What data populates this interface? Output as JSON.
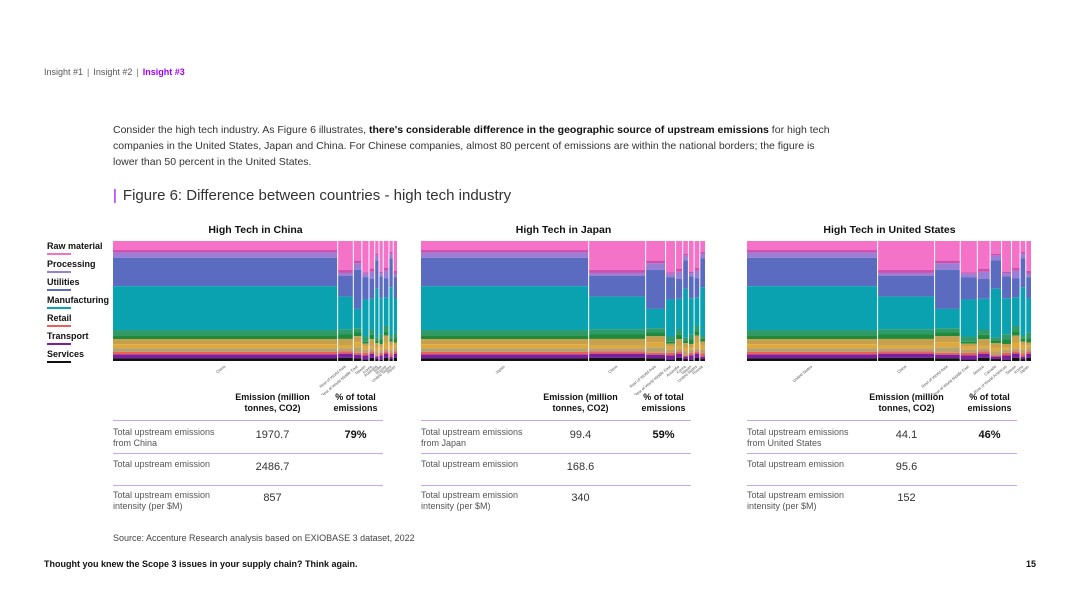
{
  "nav": {
    "items": [
      "Insight #1",
      "Insight #2",
      "Insight #3"
    ],
    "separator": "|",
    "active_index": 2
  },
  "intro": {
    "before": "Consider the high tech industry. As Figure 6 illustrates, ",
    "bold": "there's considerable difference in the geographic source of upstream emissions",
    "after": " for high tech companies in the United States, Japan and China. For Chinese companies, almost 80 percent of emissions are within the national borders; the figure is lower than 50 percent in the United States."
  },
  "figure_title": "Figure 6: Difference between countries - high tech industry",
  "legend": [
    {
      "label": "Raw material",
      "color": "#f472c8"
    },
    {
      "label": "Processing",
      "color": "#9b7fd6"
    },
    {
      "label": "Utilities",
      "color": "#5b6cc0"
    },
    {
      "label": "Manufacturing",
      "color": "#0aa2b0"
    },
    {
      "label": "Retail",
      "color": "#e8605a"
    },
    {
      "label": "Transport",
      "color": "#7b1fa2"
    },
    {
      "label": "Services",
      "color": "#111111"
    }
  ],
  "table_headers": {
    "emission": "Emission (million tonnes, CO2)",
    "pct": "% of total emissions"
  },
  "panels": [
    {
      "title": "High Tech in China",
      "rows": [
        {
          "label": "Total upstream emissions from China",
          "value": "1970.7",
          "pct": "79%"
        },
        {
          "label": "Total upstream emission",
          "value": "2486.7",
          "pct": ""
        },
        {
          "label": "Total upstream emission intensity (per $M)",
          "value": "857",
          "pct": ""
        }
      ],
      "chart_data": {
        "type": "mosaic",
        "columns": [
          {
            "label": "China",
            "share": 0.79
          },
          {
            "label": "Rest of World Asia",
            "share": 0.055
          },
          {
            "label": "Rest of World Middle East",
            "share": 0.03
          },
          {
            "label": "Taiwan",
            "share": 0.025
          },
          {
            "label": "Korea",
            "share": 0.02
          },
          {
            "label": "Australia",
            "share": 0.015
          },
          {
            "label": "India",
            "share": 0.015
          },
          {
            "label": "Russia",
            "share": 0.02
          },
          {
            "label": "United States",
            "share": 0.015
          },
          {
            "label": "Japan",
            "share": 0.015
          }
        ]
      }
    },
    {
      "title": "High Tech in Japan",
      "rows": [
        {
          "label": "Total upstream emissions from Japan",
          "value": "99.4",
          "pct": "59%"
        },
        {
          "label": "Total upstream emission",
          "value": "168.6",
          "pct": ""
        },
        {
          "label": "Total upstream emission intensity (per $M)",
          "value": "340",
          "pct": ""
        }
      ],
      "chart_data": {
        "type": "mosaic",
        "columns": [
          {
            "label": "Japan",
            "share": 0.59
          },
          {
            "label": "China",
            "share": 0.2
          },
          {
            "label": "Rest of World Asia",
            "share": 0.07
          },
          {
            "label": "Rest of World Middle East",
            "share": 0.035
          },
          {
            "label": "Australia",
            "share": 0.025
          },
          {
            "label": "Korea",
            "share": 0.02
          },
          {
            "label": "Taiwan",
            "share": 0.02
          },
          {
            "label": "United States",
            "share": 0.02
          },
          {
            "label": "Russia",
            "share": 0.02
          }
        ]
      }
    },
    {
      "title": "High Tech in United States",
      "rows": [
        {
          "label": "Total upstream emissions from United States",
          "value": "44.1",
          "pct": "46%"
        },
        {
          "label": "Total upstream emission",
          "value": "95.6",
          "pct": ""
        },
        {
          "label": "Total upstream emission intensity (per $M)",
          "value": "152",
          "pct": ""
        }
      ],
      "chart_data": {
        "type": "mosaic",
        "columns": [
          {
            "label": "United States",
            "share": 0.46
          },
          {
            "label": "China",
            "share": 0.2
          },
          {
            "label": "Rest of World Asia",
            "share": 0.09
          },
          {
            "label": "Rest of World Middle East",
            "share": 0.06
          },
          {
            "label": "Mexico",
            "share": 0.045
          },
          {
            "label": "Canada",
            "share": 0.04
          },
          {
            "label": "Rest of World Americas",
            "share": 0.035
          },
          {
            "label": "Taiwan",
            "share": 0.03
          },
          {
            "label": "Korea",
            "share": 0.02
          },
          {
            "label": "Japan",
            "share": 0.02
          }
        ]
      }
    }
  ],
  "source": "Source: Accenture Research analysis based on EXIOBASE 3 dataset, 2022",
  "footer": "Thought you knew the Scope 3 issues in your supply chain? Think again.",
  "page_number": "15"
}
